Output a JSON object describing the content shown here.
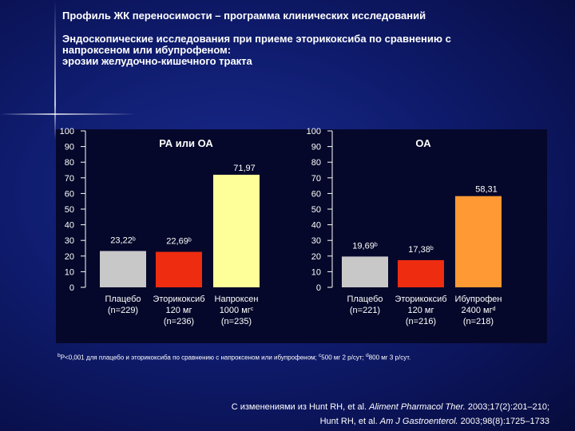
{
  "title": "Профиль ЖК переносимости – программа клинических исследований",
  "subtitle": [
    "Эндоскопические исследования при приеме эторикоксиба по сравнению с",
    "напроксеном или ибупрофеном:",
    "эрозии желудочно-кишечного тракта"
  ],
  "colors": {
    "placebo": "#c8c8c8",
    "etoricoxib": "#ee2c10",
    "naproxen": "#ffff99",
    "ibuprofen": "#ff9933",
    "panel": "#05082a"
  },
  "chart_data": [
    {
      "type": "bar",
      "title": "РА или ОА",
      "ylim": [
        0,
        100
      ],
      "yticks": [
        0,
        10,
        20,
        30,
        40,
        50,
        60,
        70,
        80,
        90,
        100
      ],
      "categories": [
        [
          "Плацебо",
          "(n=229)"
        ],
        [
          "Эторикоксиб",
          "120 мг",
          "(n=236)"
        ],
        [
          "Напроксен",
          "1000 мг",
          "(n=235)"
        ]
      ],
      "category_sup": [
        "",
        "",
        "c"
      ],
      "values": [
        23.22,
        22.69,
        71.97
      ],
      "data_labels": [
        "23,22",
        "22,69",
        "71,97"
      ],
      "label_sup": [
        "b",
        "b",
        ""
      ],
      "bar_colors": [
        "placebo",
        "etoricoxib",
        "naproxen"
      ]
    },
    {
      "type": "bar",
      "title": "ОА",
      "ylim": [
        0,
        100
      ],
      "yticks": [
        0,
        10,
        20,
        30,
        40,
        50,
        60,
        70,
        80,
        90,
        100
      ],
      "categories": [
        [
          "Плацебо",
          "(n=221)"
        ],
        [
          "Эторикоксиб",
          "120 мг",
          "(n=216)"
        ],
        [
          "Ибупрофен",
          "2400 мг",
          "(n=218)"
        ]
      ],
      "category_sup": [
        "",
        "",
        "d"
      ],
      "values": [
        19.69,
        17.38,
        58.31
      ],
      "data_labels": [
        "19,69",
        "17,38",
        "58,31"
      ],
      "label_sup": [
        "b",
        "b",
        ""
      ],
      "bar_colors": [
        "placebo",
        "etoricoxib",
        "ibuprofen"
      ]
    }
  ],
  "footnote": {
    "sup_b": "b",
    "text_b": "P<0,001 для плацебо и эторикоксиба по сравнению с напроксеном или ибупрофеном; ",
    "sup_c": "c",
    "text_c": "500 мг 2 р/сут; ",
    "sup_d": "d",
    "text_d": "800 мг 3 р/сут."
  },
  "references": {
    "line1_pre": "С изменениями из Hunt RH, et al. ",
    "line1_journal": "Aliment Pharmacol Ther.",
    "line1_post": " 2003;17(2):201–210;",
    "line2_pre": "Hunt RH, et al. ",
    "line2_journal": "Am J Gastroenterol.",
    "line2_post": " 2003;98(8):1725–1733"
  }
}
